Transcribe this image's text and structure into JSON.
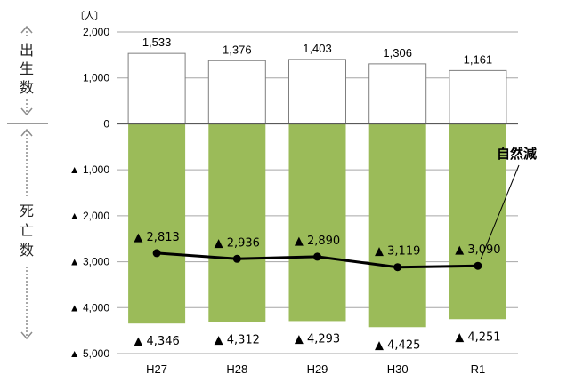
{
  "chart_data": {
    "type": "bar",
    "unit_label": "〔人〕",
    "categories": [
      "H27",
      "H28",
      "H29",
      "H30",
      "R1"
    ],
    "series": [
      {
        "name": "出生数",
        "values": [
          1533,
          1376,
          1403,
          1306,
          1161
        ],
        "labels": [
          "1,533",
          "1,376",
          "1,403",
          "1,306",
          "1,161"
        ]
      },
      {
        "name": "死亡数",
        "values": [
          -4346,
          -4312,
          -4293,
          -4425,
          -4251
        ],
        "labels": [
          "▲ 4,346",
          "▲ 4,312",
          "▲ 4,293",
          "▲ 4,425",
          "▲ 4,251"
        ]
      },
      {
        "name": "自然減",
        "type": "line",
        "values": [
          -2813,
          -2936,
          -2890,
          -3119,
          -3090
        ],
        "labels": [
          "▲ 2,813",
          "▲ 2,936",
          "▲ 2,890",
          "▲ 3,119",
          "▲ 3,090"
        ]
      }
    ],
    "ylim": [
      -5000,
      2000
    ],
    "yticks": [
      2000,
      1000,
      0,
      -1000,
      -2000,
      -3000,
      -4000,
      -5000
    ],
    "ytick_labels": [
      "2,000",
      "1,000",
      "0",
      "▲ 1,000",
      "▲ 2,000",
      "▲ 3,000",
      "▲ 4,000",
      "▲ 5,000"
    ],
    "side_labels": {
      "upper": [
        "出",
        "生",
        "数"
      ],
      "lower": [
        "死",
        "亡",
        "数"
      ]
    },
    "annotation": "自然減",
    "grid": true,
    "colors": {
      "birth_fill": "#ffffff",
      "death_fill": "#9bbb59",
      "line": "#000000",
      "grid": "#a6a6a6",
      "bar_edge": "#7f7f7f",
      "side_arrow": "#8c8c8c"
    }
  }
}
